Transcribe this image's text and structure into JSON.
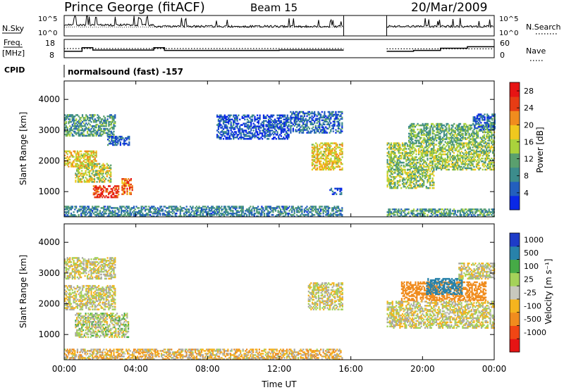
{
  "header": {
    "station": "Prince George (fitACF)",
    "beam": "Beam 15",
    "date": "20/Mar/2009"
  },
  "left_labels": {
    "nsky": "N.Sky",
    "freq_line1": "Freq.",
    "freq_line2": "[MHz]",
    "cpid": "CPID"
  },
  "right_labels": {
    "nsearch": "N.Search",
    "nave": "Nave"
  },
  "cpid_text": "normalsound (fast) -157",
  "colors": {
    "power_scale": [
      "#0a28e6",
      "#235fbe",
      "#3c8c8c",
      "#5aa06e",
      "#aad23c",
      "#f0c81e",
      "#f08c1e",
      "#e63c14",
      "#e61414"
    ],
    "velocity_scale": [
      "#e61414",
      "#f04614",
      "#f08c1e",
      "#f5b41e",
      "#c8c8be",
      "#a5d25a",
      "#46aa46",
      "#2882aa",
      "#1e3cc8"
    ],
    "ground_scatter": "#a9a9a4"
  },
  "chart_data": [
    {
      "type": "line",
      "name": "noise-panel",
      "left_axis": {
        "label": "N.Sky",
        "tick_labels": [
          "10^5",
          "10^0"
        ]
      },
      "right_axis": {
        "label": "N.Search",
        "tick_labels": [
          "10^5",
          "10^0"
        ]
      },
      "gap_hours": [
        15.6,
        18.0
      ]
    },
    {
      "type": "line",
      "name": "frequency-panel",
      "left_axis": {
        "label": "Freq. [MHz]",
        "tick_labels": [
          "18",
          "8"
        ],
        "ylim": [
          8,
          18
        ]
      },
      "right_axis": {
        "label": "Nave",
        "tick_labels": [
          "60",
          "0"
        ],
        "ylim": [
          0,
          60
        ]
      },
      "series": [
        {
          "name": "Freq.",
          "style": "solid",
          "x": [
            0,
            1.0,
            1.6,
            5.0,
            5.6,
            12.0,
            15.6,
            18.0,
            19.5,
            21.0,
            22.5,
            24.0
          ],
          "y": [
            11.5,
            13.5,
            12.2,
            13.5,
            12.0,
            12.2,
            12.3,
            11.5,
            12.0,
            13.2,
            14.0,
            14.0
          ]
        },
        {
          "name": "Nave",
          "style": "dotted",
          "x": [
            0,
            15.6,
            18.0,
            24.0
          ],
          "y": [
            30,
            30,
            29,
            29
          ]
        }
      ]
    },
    {
      "type": "heatmap",
      "name": "power-panel",
      "ylabel": "Slant Range [km]",
      "yticks": [
        1000,
        2000,
        3000,
        4000
      ],
      "ylim": [
        180,
        4600
      ],
      "xlim_hours": [
        0,
        24
      ],
      "colorbar": {
        "label": "Power [dB]",
        "ticks": [
          4,
          8,
          12,
          16,
          20,
          24,
          28
        ],
        "range": [
          0,
          30
        ]
      },
      "scatter_regions": [
        {
          "t0": 0.0,
          "t1": 2.8,
          "r0": 2800,
          "r1": 3500,
          "value": 10
        },
        {
          "t0": 0.0,
          "t1": 1.8,
          "r0": 1800,
          "r1": 2300,
          "value": 18
        },
        {
          "t0": 0.6,
          "t1": 2.6,
          "r0": 1300,
          "r1": 1900,
          "value": 16
        },
        {
          "t0": 1.6,
          "t1": 3.0,
          "r0": 800,
          "r1": 1200,
          "value": 26
        },
        {
          "t0": 3.2,
          "t1": 3.8,
          "r0": 900,
          "r1": 1400,
          "value": 24
        },
        {
          "t0": 2.4,
          "t1": 3.6,
          "r0": 2500,
          "r1": 2800,
          "value": 6
        },
        {
          "t0": 8.5,
          "t1": 12.5,
          "r0": 2700,
          "r1": 3500,
          "value": 4
        },
        {
          "t0": 12.6,
          "t1": 15.5,
          "r0": 2900,
          "r1": 3600,
          "value": 6
        },
        {
          "t0": 13.8,
          "t1": 15.5,
          "r0": 1700,
          "r1": 2600,
          "value": 18
        },
        {
          "t0": 14.8,
          "t1": 15.5,
          "r0": 900,
          "r1": 1100,
          "value": 4
        },
        {
          "t0": 0.0,
          "t1": 15.5,
          "r0": 180,
          "r1": 500,
          "value": 8
        },
        {
          "t0": 18.0,
          "t1": 20.6,
          "r0": 1100,
          "r1": 1700,
          "value": 14
        },
        {
          "t0": 18.0,
          "t1": 24.0,
          "r0": 1700,
          "r1": 2600,
          "value": 14
        },
        {
          "t0": 19.2,
          "t1": 24.0,
          "r0": 2600,
          "r1": 3200,
          "value": 12
        },
        {
          "t0": 22.8,
          "t1": 24.0,
          "r0": 3000,
          "r1": 3500,
          "value": 6
        },
        {
          "t0": 18.0,
          "t1": 24.0,
          "r0": 180,
          "r1": 450,
          "value": 10
        }
      ]
    },
    {
      "type": "heatmap",
      "name": "velocity-panel",
      "xlabel": "Time UT",
      "ylabel": "Slant Range [km]",
      "xticks": [
        "00:00",
        "04:00",
        "08:00",
        "12:00",
        "16:00",
        "20:00",
        "00:00"
      ],
      "yticks": [
        1000,
        2000,
        3000,
        4000
      ],
      "ylim": [
        180,
        4600
      ],
      "xlim_hours": [
        0,
        24
      ],
      "colorbar": {
        "label": "Velocity [m s⁻¹]",
        "ticks": [
          1000,
          500,
          100,
          25,
          -25,
          -100,
          -500,
          -1000
        ]
      },
      "scatter_regions": [
        {
          "t0": 0.0,
          "t1": 2.8,
          "r0": 2800,
          "r1": 3500,
          "value": 0
        },
        {
          "t0": 0.0,
          "t1": 2.8,
          "r0": 1800,
          "r1": 2600,
          "value": 0
        },
        {
          "t0": 0.6,
          "t1": 3.6,
          "r0": 900,
          "r1": 1700,
          "value": 30
        },
        {
          "t0": 13.6,
          "t1": 15.5,
          "r0": 1800,
          "r1": 2700,
          "value": 0
        },
        {
          "t0": 0.0,
          "t1": 15.5,
          "r0": 180,
          "r1": 500,
          "value": -50
        },
        {
          "t0": 18.0,
          "t1": 24.0,
          "r0": 1200,
          "r1": 2100,
          "value": 0
        },
        {
          "t0": 18.8,
          "t1": 23.5,
          "r0": 2100,
          "r1": 2700,
          "value": -300
        },
        {
          "t0": 20.2,
          "t1": 22.2,
          "r0": 2300,
          "r1": 2800,
          "value": 600
        },
        {
          "t0": 22.0,
          "t1": 24.0,
          "r0": 2800,
          "r1": 3300,
          "value": 0
        }
      ]
    }
  ]
}
